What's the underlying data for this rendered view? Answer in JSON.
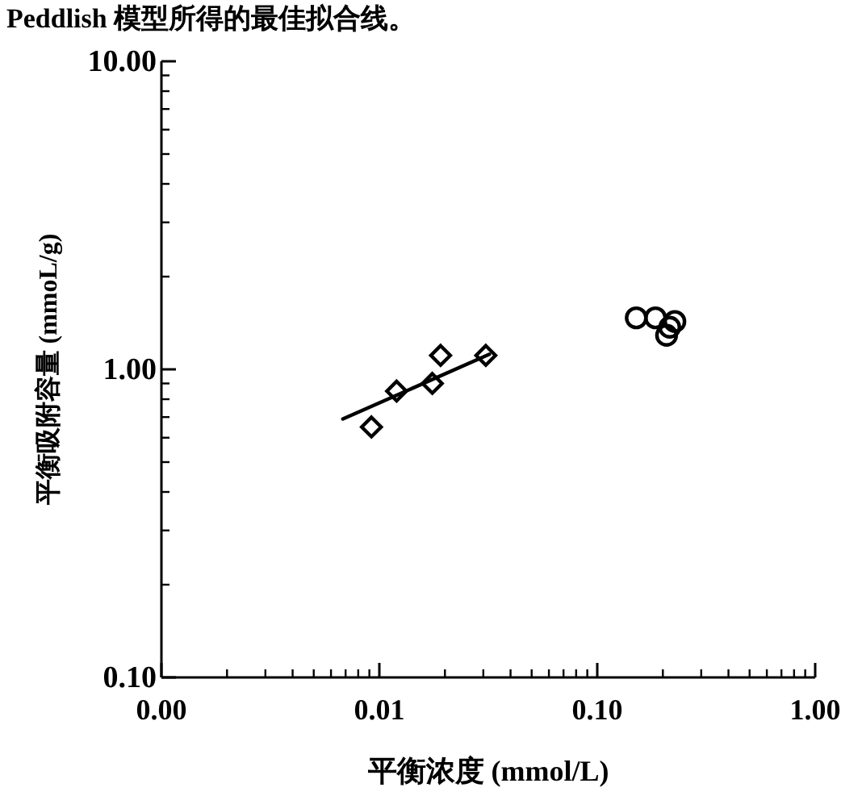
{
  "chart_data": {
    "type": "scatter",
    "annotations": [
      "Peddlish 模型所得的最佳拟合线。"
    ],
    "xlabel": "平衡浓度 (mmol/L)",
    "ylabel": "平衡吸附容量 (mmoL/g)",
    "log": "xy",
    "xlim": [
      0.001,
      1
    ],
    "ylim": [
      0.1,
      10
    ],
    "xticks": [
      {
        "value": 0.001,
        "label": "0.00"
      },
      0.01,
      {
        "value": 0.1,
        "label": "0.10"
      },
      {
        "value": 1,
        "label": "1.00"
      }
    ],
    "yticks": [
      {
        "value": 0.1,
        "label": "0.10"
      },
      {
        "value": 1,
        "label": "1.00"
      },
      {
        "value": 10,
        "label": "10.00"
      }
    ],
    "series": [
      {
        "marker": "diamond",
        "color": "#000000",
        "x": [
          0.0092,
          0.012,
          0.0175,
          0.0191,
          0.0308
        ],
        "values": [
          0.65,
          0.85,
          0.9,
          1.11,
          1.11
        ]
      },
      {
        "marker": "circle",
        "color": "#000000",
        "x": [
          0.151,
          0.185,
          0.215,
          0.227,
          0.208
        ],
        "values": [
          1.47,
          1.47,
          1.37,
          1.43,
          1.29
        ]
      },
      {
        "type": "line",
        "color": "#000000",
        "x": [
          0.0068,
          0.032
        ],
        "values": [
          0.69,
          1.12
        ]
      }
    ]
  }
}
